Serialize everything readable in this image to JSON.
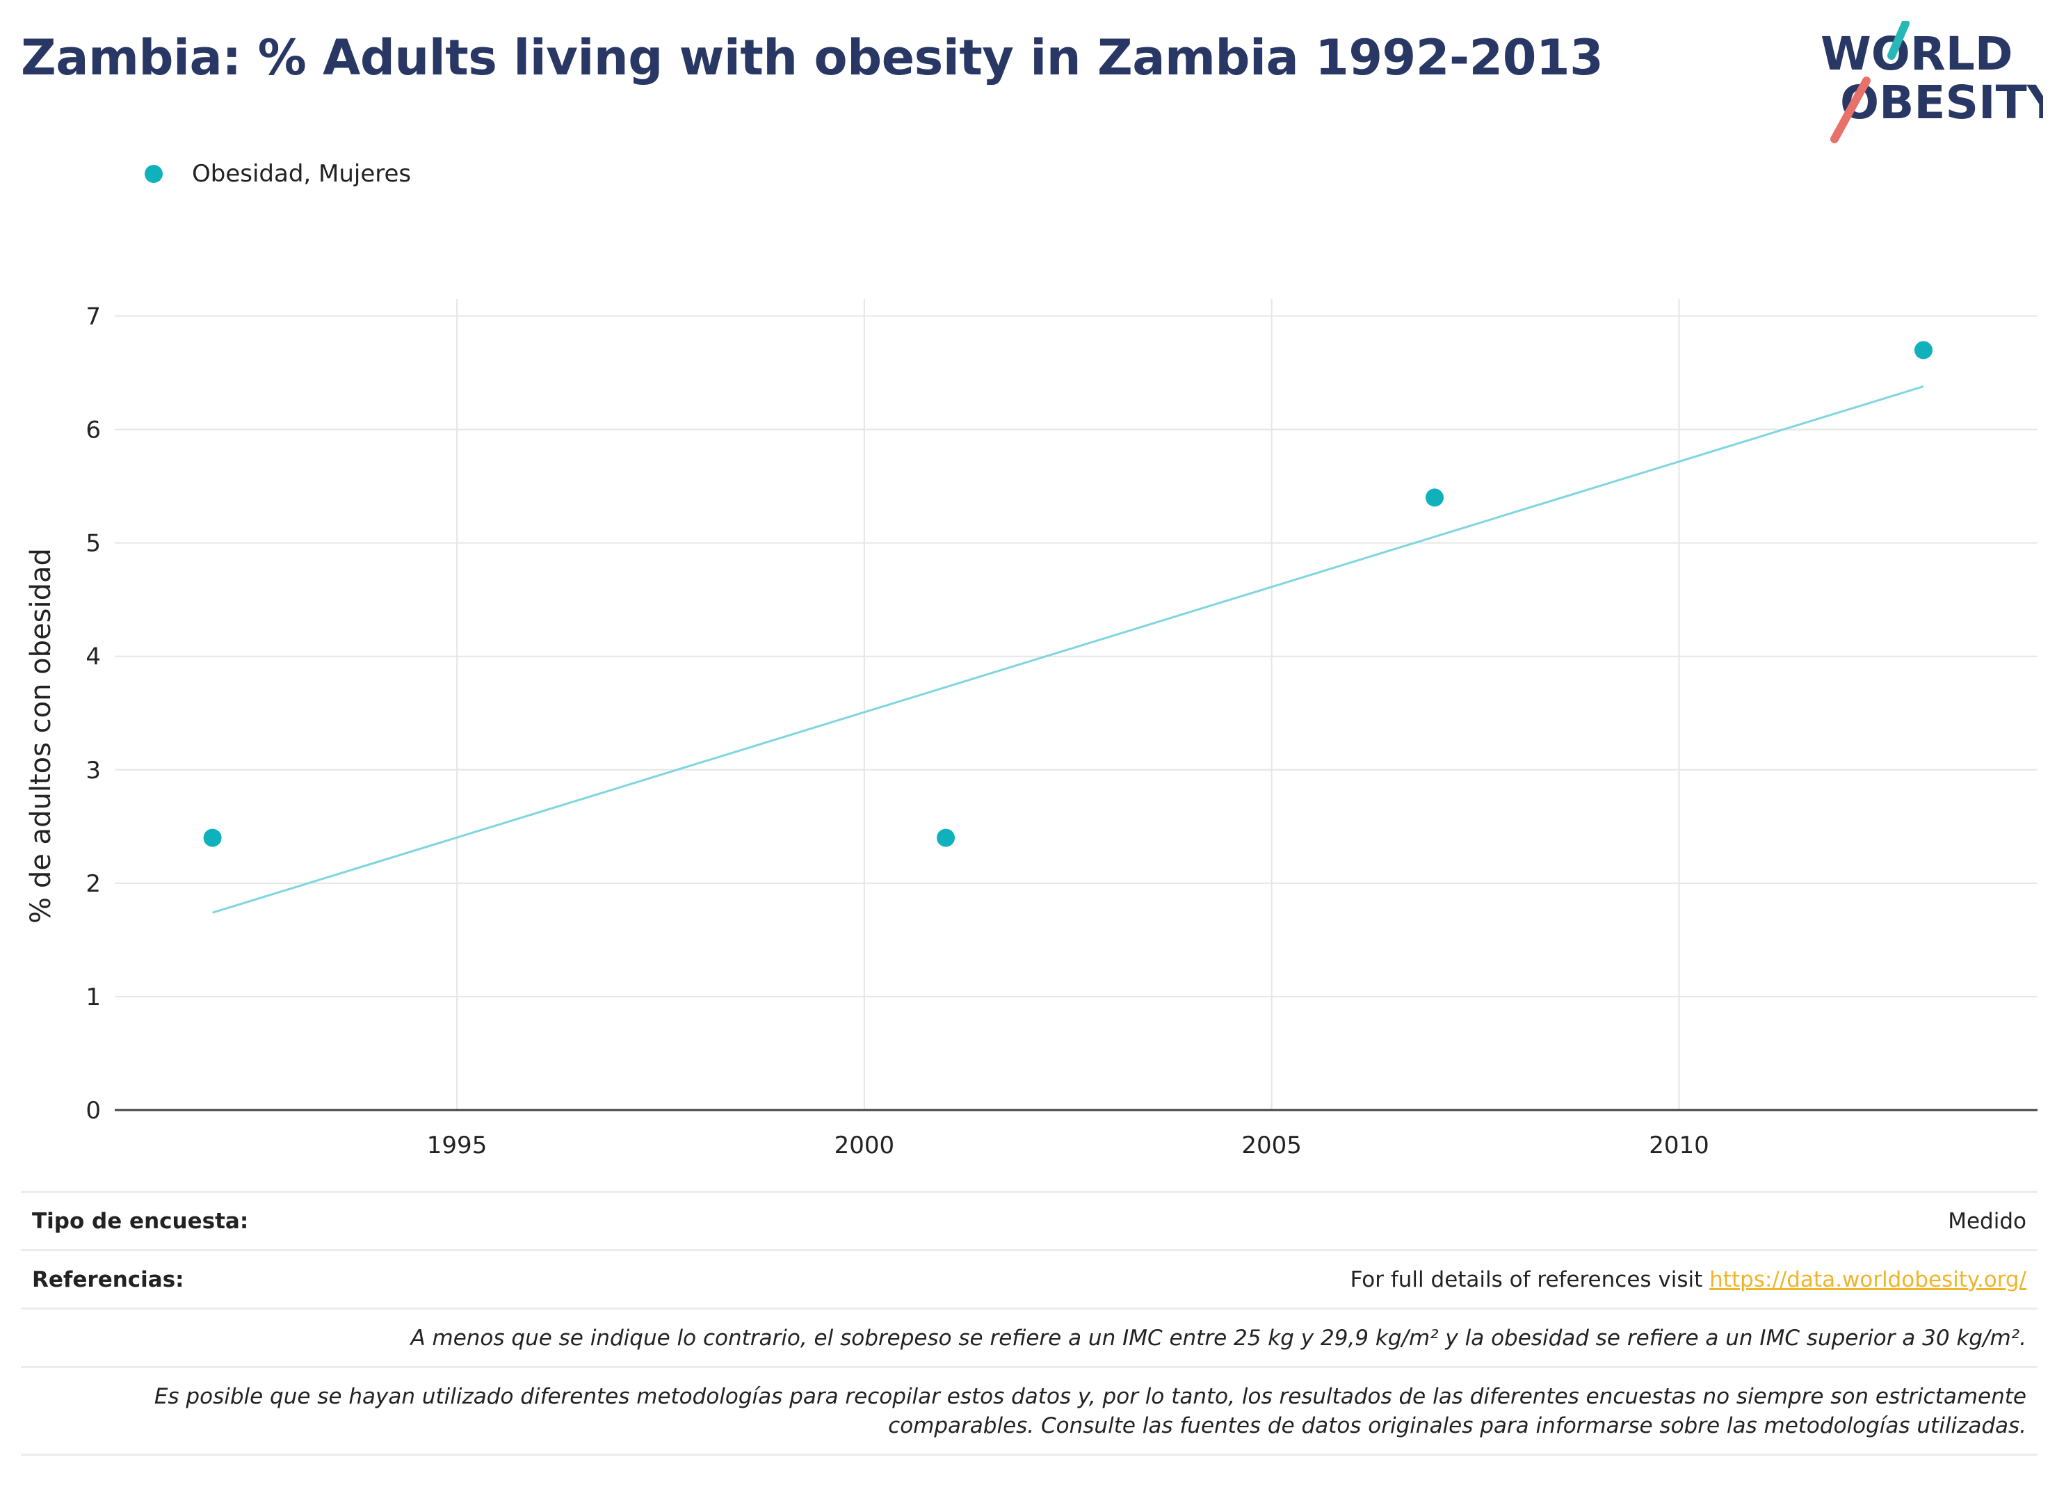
{
  "page": {
    "title": "Zambia: % Adults living with obesity in Zambia 1992-2013"
  },
  "logo": {
    "line1": "WORLD",
    "line2": "OBESITY",
    "colors": {
      "text": "#283763",
      "slash_top": "#27b7b7",
      "slash_bottom": "#e8716a"
    }
  },
  "legend": {
    "items": [
      {
        "label": "Obesidad, Mujeres",
        "color": "#0fb1bd"
      }
    ]
  },
  "chart_data": {
    "type": "scatter",
    "ylabel": "% de adultos con obesidad",
    "xlabel": "",
    "xlim": [
      1990.8,
      2014.4
    ],
    "ylim": [
      0,
      7.15
    ],
    "x_ticks": [
      "1995",
      "2000",
      "2005",
      "2010"
    ],
    "x_tick_values": [
      1995,
      2000,
      2005,
      2010
    ],
    "y_ticks": [
      "0",
      "1",
      "2",
      "3",
      "4",
      "5",
      "6",
      "7"
    ],
    "y_tick_values": [
      0,
      1,
      2,
      3,
      4,
      5,
      6,
      7
    ],
    "grid": true,
    "series": [
      {
        "name": "Obesidad, Mujeres",
        "color": "#0fb1bd",
        "points": [
          {
            "x": 1992,
            "y": 2.4
          },
          {
            "x": 2001,
            "y": 2.4
          },
          {
            "x": 2007,
            "y": 5.4
          },
          {
            "x": 2013,
            "y": 6.7
          }
        ]
      }
    ],
    "trendline": {
      "color": "#7fd6de",
      "points": [
        {
          "x": 1992,
          "y": 1.74
        },
        {
          "x": 2013,
          "y": 6.38
        }
      ]
    }
  },
  "footer": {
    "survey_type_label": "Tipo de encuesta:",
    "survey_type_value": "Medido",
    "references_label": "Referencias:",
    "references_text": "For full details of references visit ",
    "references_link": "https://data.worldobesity.org/",
    "note1": "A menos que se indique lo contrario, el sobrepeso se refiere a un IMC entre 25 kg y 29,9 kg/m² y la obesidad se refiere a un IMC superior a 30 kg/m².",
    "note2_line1": "Es posible que se hayan utilizado diferentes metodologías para recopilar estos datos y, por lo tanto, los resultados de las diferentes encuestas no siempre son estrictamente",
    "note2_line2": "comparables. Consulte las fuentes de datos originales para informarse sobre las metodologías utilizadas."
  }
}
